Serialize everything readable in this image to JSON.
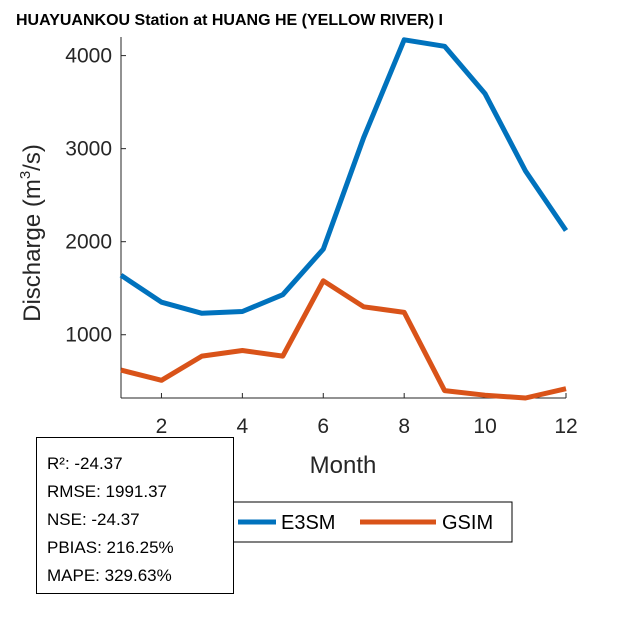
{
  "chart_data": {
    "type": "line",
    "title": "HUAYUANKOU  Station at  HUANG HE (YELLOW RIVER)  I",
    "xlabel": "Month",
    "ylabel_main": "Discharge (m",
    "ylabel_sup": "3",
    "ylabel_tail": "/s)",
    "xlim": [
      1,
      12
    ],
    "ylim": [
      320,
      4200
    ],
    "xticks": [
      2,
      4,
      6,
      8,
      10,
      12
    ],
    "yticks": [
      1000,
      2000,
      3000,
      4000
    ],
    "x": [
      1,
      2,
      3,
      4,
      5,
      6,
      7,
      8,
      9,
      10,
      11,
      12
    ],
    "series": [
      {
        "name": "E3SM",
        "color": "#0072BD",
        "values": [
          1640,
          1350,
          1230,
          1250,
          1430,
          1920,
          3120,
          4170,
          4100,
          3590,
          2760,
          2120
        ]
      },
      {
        "name": "GSIM",
        "color": "#D95319",
        "values": [
          620,
          510,
          770,
          830,
          770,
          1580,
          1300,
          1240,
          400,
          350,
          320,
          420
        ]
      }
    ],
    "grid": false,
    "legend_placement": "bottom"
  },
  "stats": {
    "r2": "R²: -24.37",
    "rmse": "RMSE: 1991.37",
    "nse": "NSE: -24.37",
    "pbias": "PBIAS: 216.25%",
    "mape": "MAPE: 329.63%"
  }
}
